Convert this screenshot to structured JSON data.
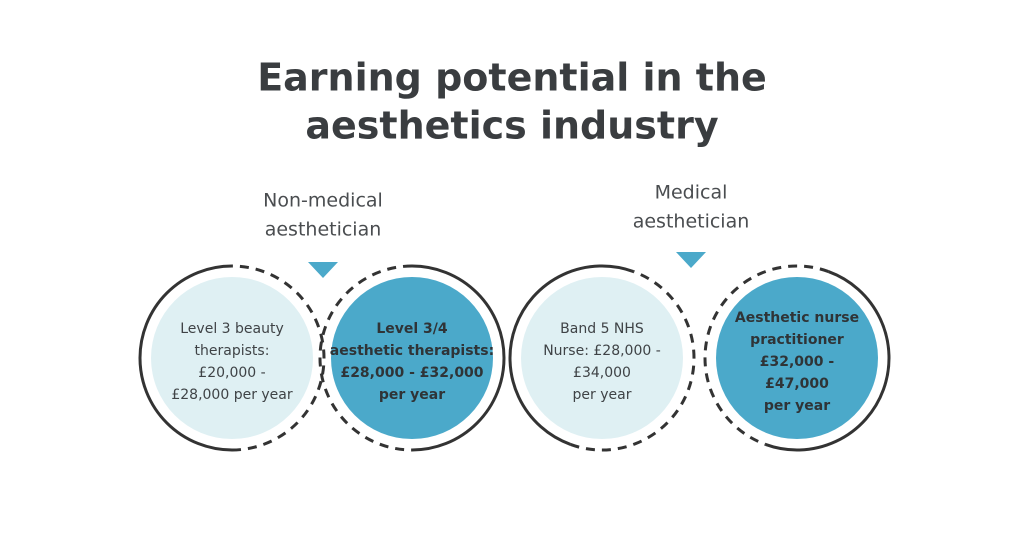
{
  "title": {
    "lines": [
      "Earning potential in the",
      "aesthetics industry"
    ]
  },
  "groups": [
    {
      "lines": [
        "Non-medical",
        "aesthetician"
      ]
    },
    {
      "lines": [
        "Medical",
        "aesthetician"
      ]
    }
  ],
  "circles": [
    {
      "lines": [
        "Level 3 beauty",
        "therapists:",
        "£20,000 -",
        "£28,000 per year"
      ]
    },
    {
      "lines": [
        "Level 3/4",
        "aesthetic therapists:",
        "£28,000 - £32,000",
        "per year"
      ]
    },
    {
      "lines": [
        "Band 5 NHS",
        "Nurse: £28,000 -",
        "£34,000",
        "per year"
      ]
    },
    {
      "lines": [
        "Aesthetic nurse",
        "practitioner",
        "£32,000 -",
        "£47,000",
        "per year"
      ]
    }
  ]
}
